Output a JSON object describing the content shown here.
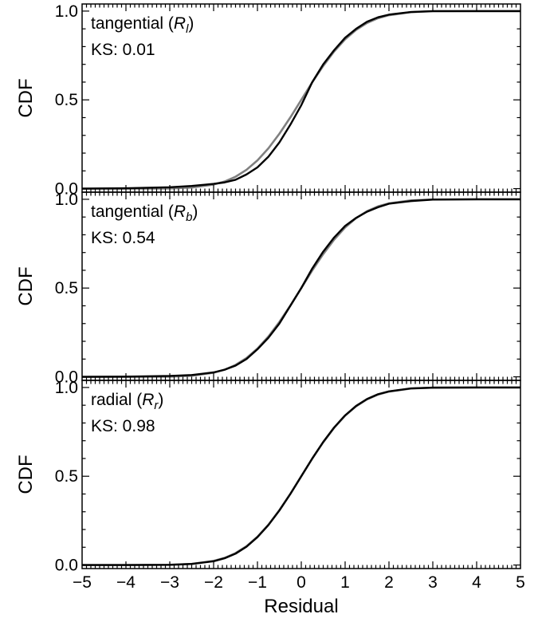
{
  "chart_data": [
    {
      "type": "line",
      "annotation_name": "tangential (",
      "annotation_symbol": "R",
      "annotation_subscript": "l",
      "annotation_close": ")",
      "ks_text": "KS: 0.01",
      "ylabel": "CDF",
      "xlabel": "",
      "xlim": [
        -5,
        5
      ],
      "ylim": [
        0,
        1
      ],
      "yticks": [
        0.0,
        0.5,
        1.0
      ],
      "ytick_labels": [
        "0.0",
        "0.5",
        "1.0"
      ],
      "series": [
        {
          "color": "#808080",
          "x": [
            -5,
            -4,
            -3,
            -2.5,
            -2,
            -1.75,
            -1.5,
            -1.25,
            -1,
            -0.75,
            -0.5,
            -0.25,
            0,
            0.25,
            0.5,
            0.75,
            1,
            1.25,
            1.5,
            1.75,
            2,
            2.5,
            3,
            4,
            5
          ],
          "y": [
            0.0,
            0.0,
            0.001,
            0.006,
            0.023,
            0.04,
            0.067,
            0.106,
            0.159,
            0.227,
            0.309,
            0.401,
            0.5,
            0.599,
            0.691,
            0.773,
            0.841,
            0.894,
            0.933,
            0.96,
            0.977,
            0.994,
            0.999,
            1.0,
            1.0
          ]
        },
        {
          "color": "#000000",
          "x": [
            -5,
            -4,
            -3,
            -2.5,
            -2,
            -1.75,
            -1.5,
            -1.25,
            -1,
            -0.75,
            -0.5,
            -0.25,
            0,
            0.25,
            0.5,
            0.75,
            1,
            1.25,
            1.5,
            1.75,
            2,
            2.5,
            3,
            4,
            5
          ],
          "y": [
            0.0,
            0.002,
            0.008,
            0.015,
            0.027,
            0.035,
            0.05,
            0.08,
            0.12,
            0.18,
            0.26,
            0.36,
            0.47,
            0.6,
            0.7,
            0.78,
            0.85,
            0.9,
            0.94,
            0.965,
            0.98,
            0.995,
            1.0,
            1.0,
            1.0
          ]
        }
      ]
    },
    {
      "type": "line",
      "annotation_name": "tangential (",
      "annotation_symbol": "R",
      "annotation_subscript": "b",
      "annotation_close": ")",
      "ks_text": "KS: 0.54",
      "ylabel": "CDF",
      "xlabel": "",
      "xlim": [
        -5,
        5
      ],
      "ylim": [
        0,
        1
      ],
      "yticks": [
        0.0,
        0.5,
        1.0
      ],
      "ytick_labels": [
        "0.0",
        "0.5",
        "1.0"
      ],
      "series": [
        {
          "color": "#808080",
          "x": [
            -5,
            -4,
            -3,
            -2.5,
            -2,
            -1.75,
            -1.5,
            -1.25,
            -1,
            -0.75,
            -0.5,
            -0.25,
            0,
            0.25,
            0.5,
            0.75,
            1,
            1.25,
            1.5,
            1.75,
            2,
            2.5,
            3,
            4,
            5
          ],
          "y": [
            0.0,
            0.0,
            0.001,
            0.006,
            0.023,
            0.04,
            0.067,
            0.106,
            0.159,
            0.227,
            0.309,
            0.401,
            0.5,
            0.599,
            0.691,
            0.773,
            0.841,
            0.894,
            0.933,
            0.96,
            0.977,
            0.994,
            0.999,
            1.0,
            1.0
          ]
        },
        {
          "color": "#000000",
          "x": [
            -5,
            -4,
            -3,
            -2.5,
            -2,
            -1.75,
            -1.5,
            -1.25,
            -1,
            -0.75,
            -0.5,
            -0.25,
            0,
            0.25,
            0.5,
            0.75,
            1,
            1.25,
            1.5,
            1.75,
            2,
            2.5,
            3,
            4,
            5
          ],
          "y": [
            0.0,
            0.001,
            0.005,
            0.01,
            0.025,
            0.04,
            0.063,
            0.1,
            0.155,
            0.22,
            0.3,
            0.4,
            0.5,
            0.61,
            0.705,
            0.785,
            0.85,
            0.895,
            0.93,
            0.955,
            0.975,
            0.99,
            0.998,
            1.0,
            1.0
          ]
        }
      ]
    },
    {
      "type": "line",
      "annotation_name": "radial (",
      "annotation_symbol": "R",
      "annotation_subscript": "r",
      "annotation_close": ")",
      "ks_text": "KS: 0.98",
      "ylabel": "CDF",
      "xlabel": "Residual",
      "xlim": [
        -5,
        5
      ],
      "ylim": [
        0,
        1
      ],
      "xticks": [
        -5,
        -4,
        -3,
        -2,
        -1,
        0,
        1,
        2,
        3,
        4,
        5
      ],
      "xtick_labels": [
        "−5",
        "−4",
        "−3",
        "−2",
        "−1",
        "0",
        "1",
        "2",
        "3",
        "4",
        "5"
      ],
      "yticks": [
        0.0,
        0.5,
        1.0
      ],
      "ytick_labels": [
        "0.0",
        "0.5",
        "1.0"
      ],
      "series": [
        {
          "color": "#808080",
          "x": [
            -5,
            -4,
            -3,
            -2.5,
            -2,
            -1.75,
            -1.5,
            -1.25,
            -1,
            -0.75,
            -0.5,
            -0.25,
            0,
            0.25,
            0.5,
            0.75,
            1,
            1.25,
            1.5,
            1.75,
            2,
            2.5,
            3,
            4,
            5
          ],
          "y": [
            0.0,
            0.0,
            0.001,
            0.006,
            0.023,
            0.04,
            0.067,
            0.106,
            0.159,
            0.227,
            0.309,
            0.401,
            0.5,
            0.599,
            0.691,
            0.773,
            0.841,
            0.894,
            0.933,
            0.96,
            0.977,
            0.994,
            0.999,
            1.0,
            1.0
          ]
        },
        {
          "color": "#000000",
          "x": [
            -5,
            -4,
            -3,
            -2.5,
            -2,
            -1.75,
            -1.5,
            -1.25,
            -1,
            -0.75,
            -0.5,
            -0.25,
            0,
            0.25,
            0.5,
            0.75,
            1,
            1.25,
            1.5,
            1.75,
            2,
            2.5,
            3,
            4,
            5
          ],
          "y": [
            0.0,
            0.0,
            0.001,
            0.006,
            0.021,
            0.038,
            0.064,
            0.103,
            0.157,
            0.225,
            0.307,
            0.4,
            0.5,
            0.6,
            0.693,
            0.775,
            0.843,
            0.896,
            0.935,
            0.962,
            0.978,
            0.995,
            0.999,
            1.0,
            1.0
          ]
        }
      ]
    }
  ]
}
